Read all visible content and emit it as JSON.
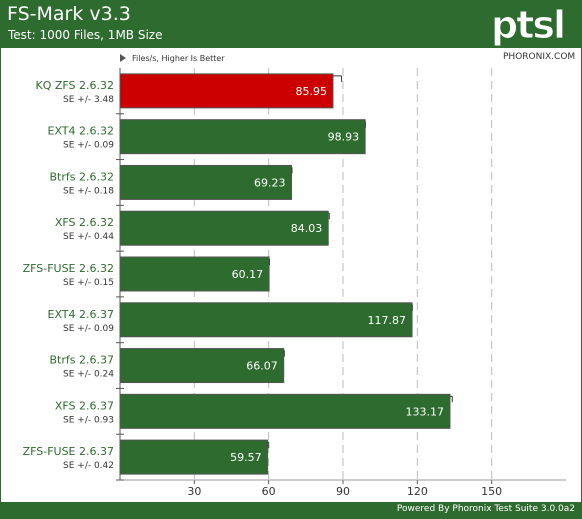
{
  "header": {
    "title": "FS-Mark v3.3",
    "subtitle": "Test: 1000 Files, 1MB Size",
    "logo_text": "ptsl"
  },
  "watermark": "PHORONIX.COM",
  "footer": {
    "text": "Powered By Phoronix Test Suite 3.0.0a2"
  },
  "colors": {
    "header_bg": "#2e6b2e",
    "bar_default": "#2e6b2e",
    "bar_highlight": "#cc0000",
    "category_text": "#2e6b2e",
    "grid": "#bbbbbb"
  },
  "chart_data": {
    "type": "bar",
    "orientation": "horizontal",
    "legend_note": "Files/s, Higher Is Better",
    "categories": [
      "KQ ZFS 2.6.32",
      "EXT4 2.6.32",
      "Btrfs 2.6.32",
      "XFS 2.6.32",
      "ZFS-FUSE 2.6.32",
      "EXT4 2.6.37",
      "Btrfs 2.6.37",
      "XFS 2.6.37",
      "ZFS-FUSE 2.6.37"
    ],
    "values": [
      85.95,
      98.93,
      69.23,
      84.03,
      60.17,
      117.87,
      66.07,
      133.17,
      59.57
    ],
    "value_labels": [
      "85.95",
      "98.93",
      "69.23",
      "84.03",
      "60.17",
      "117.87",
      "66.07",
      "133.17",
      "59.57"
    ],
    "se_labels": [
      "SE +/- 3.48",
      "SE +/- 0.09",
      "SE +/- 0.18",
      "SE +/- 0.44",
      "SE +/- 0.15",
      "SE +/- 0.09",
      "SE +/- 0.24",
      "SE +/- 0.93",
      "SE +/- 0.42"
    ],
    "se_values": [
      3.48,
      0.09,
      0.18,
      0.44,
      0.15,
      0.09,
      0.24,
      0.93,
      0.42
    ],
    "highlight_index": 0,
    "xlim": [
      0,
      180
    ],
    "x_ticks": [
      30,
      60,
      90,
      120,
      150
    ],
    "x_tick_labels": [
      "30",
      "60",
      "90",
      "120",
      "150"
    ],
    "grid": true
  }
}
